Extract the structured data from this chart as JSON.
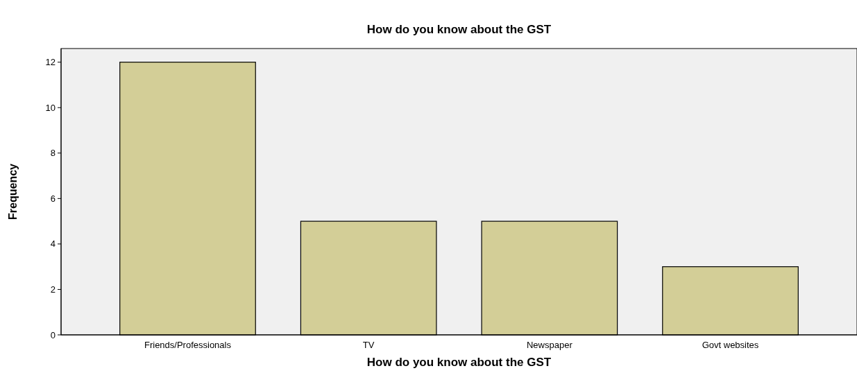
{
  "chart_data": {
    "type": "bar",
    "title": "How do you know about the GST",
    "xlabel": "How do you know about the GST",
    "ylabel": "Frequency",
    "categories": [
      "Friends/Professionals",
      "TV",
      "Newspaper",
      "Govt websites"
    ],
    "values": [
      12,
      5,
      5,
      3
    ],
    "color": "#d3ce97",
    "ylim": [
      0,
      12.6
    ],
    "yticks": [
      0,
      2,
      4,
      6,
      8,
      10,
      12
    ],
    "grid": false
  }
}
